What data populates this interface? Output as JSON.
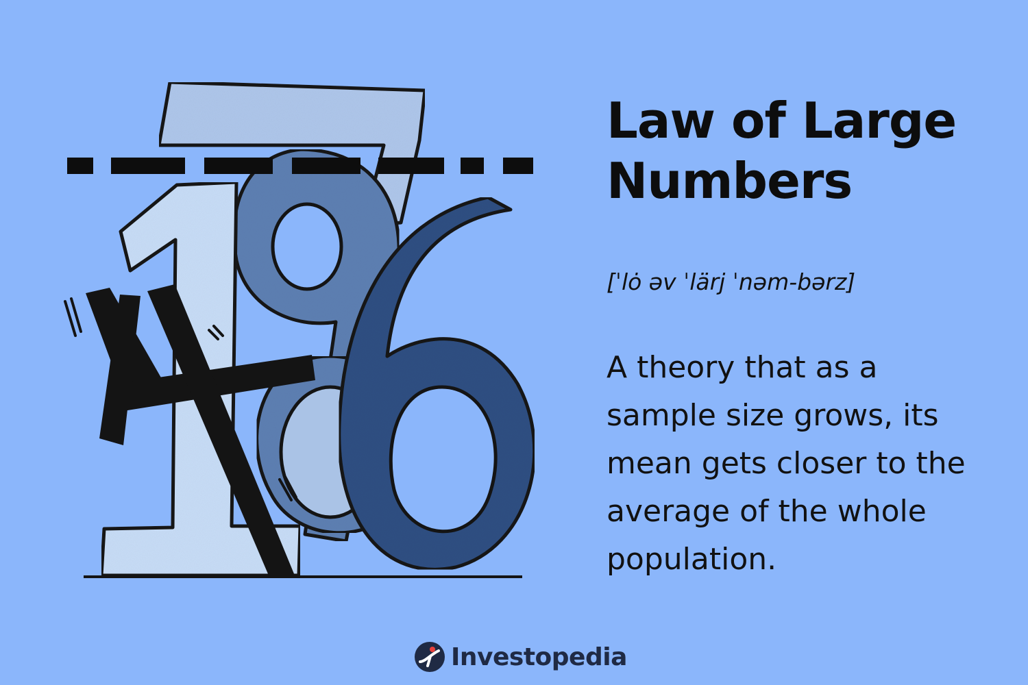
{
  "title": "Law of Large Numbers",
  "pronunciation": "[ˈlȯ əv ˈlärj ˈnəm-bərz]",
  "definition": "A theory that as a sample size grows, its mean gets closer to the average of the whole population.",
  "brand": {
    "name": "Investopedia",
    "logo_icon": "investopedia-logo-icon"
  },
  "illustration": {
    "description_icon": "stacked-numbers-illustration",
    "digits": [
      "7",
      "1",
      "9",
      "8",
      "4",
      "6"
    ]
  },
  "colors": {
    "background": "#8bb6fb",
    "ink": "#0d0d0d",
    "digit_light": "#c7dcf6",
    "digit_mid": "#5c7eb0",
    "digit_dark": "#2f4f82",
    "digit_pale": "#aac3e6",
    "brand_text": "#1f2a44",
    "brand_accent": "#2a6df4"
  }
}
